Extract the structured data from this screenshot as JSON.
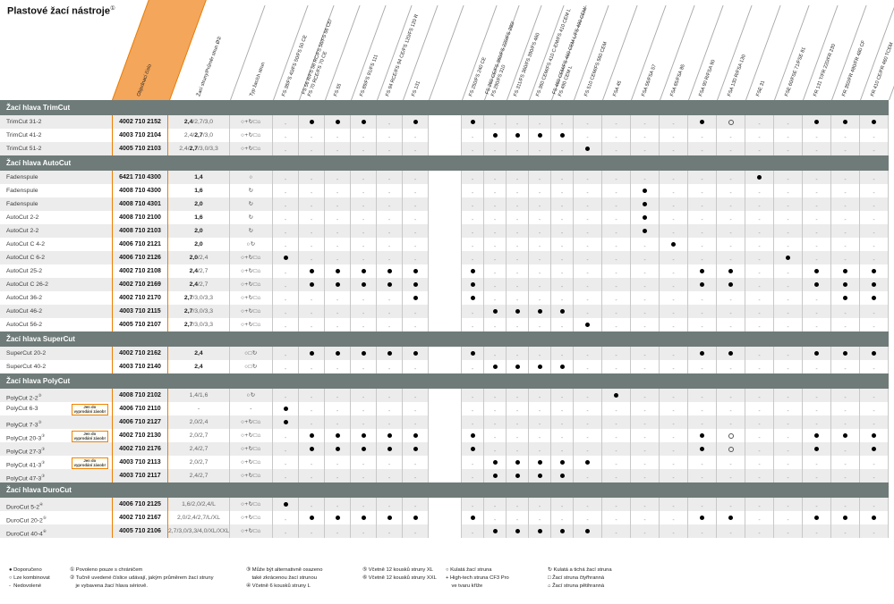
{
  "title": {
    "text": "Plastové žací nástroje",
    "sup": "①"
  },
  "columns": {
    "order": "Objednací číslo",
    "diameters": "Žací struny/Průměr strun Ø②",
    "line_type": "Typ žacích strun",
    "machines": [
      "FS 38/FS 40/FS 50/FS 50 CE",
      "FS 56 R/FS 56 RC/FS 56/FS 56 CE/\nFS 70 RCE/FS 70 CE",
      "FS 55",
      "FS 89/FS 91/FS 111",
      "FS 94 RCE/FS 94 CE/FS 120/FS 120 R",
      "FS 131",
      "FS 250/FS 240 CE",
      "FS 260 CE/FS 360/FS 220/FS 280/\nFS 290/FS 310",
      "FS 311/FS 360/FS 390/FS 460",
      "FS 360 CEM/FS 410 C-EM/FS 410 CEM L",
      "FS 460 CEM/FS 460 CEM L/FS 490 CEM/\nFS 490 CEM L",
      "FS 510 CEM/FS 560 CEM",
      "FSA 45",
      "FSA 56/FSA 57",
      "FSA 65/FSA 85",
      "FSA 90 R/FSA 90",
      "FSA 130 R/FSA 130",
      "FSE 31",
      "FSE 60/FSE 71/FSE 81",
      "FR 131 T/FR 220/FR 230",
      "FR 350/FR 480/FR 480 CF",
      "FR 410 CE/FR 460 TCEM"
    ]
  },
  "badge_text": "Jen do\nvyprodání zásob!",
  "sections": [
    {
      "title": "Žací hlava TrimCut",
      "rows": [
        {
          "name": "TrimCut 31-2",
          "order": "4002 710 2152",
          "d1": "",
          "d2": "2,4",
          "d3": "/2,7/3,0",
          "sym": "○+↻□⌂",
          "compat": "-BBB-BB--------BO--BBB"
        },
        {
          "name": "TrimCut 41-2",
          "order": "4003 710 2104",
          "d1": "2,4/",
          "d2": "2,7",
          "d3": "/3,0",
          "sym": "○+↻□⌂",
          "compat": "-------BBBB-----------"
        },
        {
          "name": "TrimCut 51-2",
          "order": "4005 710 2103",
          "d1": "2,4/",
          "d2": "2,7",
          "d3": "/3,0/3,3",
          "sym": "○+↻□⌂",
          "compat": "-----------B----------"
        }
      ]
    },
    {
      "title": "Žací hlava AutoCut",
      "rows": [
        {
          "name": "Fadenspule",
          "order": "6421 710 4300",
          "d1": "",
          "d2": "1,4",
          "d3": "",
          "sym": "○",
          "compat": "-----------------B----"
        },
        {
          "name": "Fadenspule",
          "order": "4008 710 4300",
          "d1": "",
          "d2": "1,6",
          "d3": "",
          "sym": "↻",
          "compat": "-------------B--------"
        },
        {
          "name": "Fadenspule",
          "order": "4008 710 4301",
          "d1": "",
          "d2": "2,0",
          "d3": "",
          "sym": "↻",
          "compat": "-------------B--------"
        },
        {
          "name": "AutoCut 2-2",
          "order": "4008 710 2100",
          "d1": "",
          "d2": "1,6",
          "d3": "",
          "sym": "↻",
          "compat": "-------------B--------"
        },
        {
          "name": "AutoCut 2-2",
          "order": "4008 710 2103",
          "d1": "",
          "d2": "2,0",
          "d3": "",
          "sym": "↻",
          "compat": "-------------B--------"
        },
        {
          "name": "AutoCut C 4-2",
          "order": "4006 710 2121",
          "d1": "",
          "d2": "2,0",
          "d3": "",
          "sym": "○↻",
          "compat": "--------------B-------"
        },
        {
          "name": "AutoCut C 6-2",
          "order": "4006 710 2126",
          "d1": "",
          "d2": "2,0",
          "d3": "/2,4",
          "sym": "○+↻□⌂",
          "compat": "B-----------------B---"
        },
        {
          "name": "AutoCut 25-2",
          "order": "4002 710 2108",
          "d1": "",
          "d2": "2,4",
          "d3": "/2,7",
          "sym": "○+↻□⌂",
          "compat": "-BBBBBB--------BB--BBB"
        },
        {
          "name": "AutoCut C 26-2",
          "order": "4002 710 2169",
          "d1": "",
          "d2": "2,4",
          "d3": "/2,7",
          "sym": "○+↻□⌂",
          "compat": "-BBBBBB--------BB--BBB"
        },
        {
          "name": "AutoCut 36-2",
          "order": "4002 710 2170",
          "d1": "",
          "d2": "2,7",
          "d3": "/3,0/3,3",
          "sym": "○+↻□⌂",
          "compat": "-----BB-------------BB"
        },
        {
          "name": "AutoCut 46-2",
          "order": "4003 710 2115",
          "d1": "",
          "d2": "2,7",
          "d3": "/3,0/3,3",
          "sym": "○+↻□⌂",
          "compat": "-------BBBB-----------"
        },
        {
          "name": "AutoCut 56-2",
          "order": "4005 710 2107",
          "d1": "",
          "d2": "2,7",
          "d3": "/3,0/3,3",
          "sym": "○+↻□⌂",
          "compat": "-----------B----------"
        }
      ]
    },
    {
      "title": "Žací hlava SuperCut",
      "rows": [
        {
          "name": "SuperCut 20-2",
          "order": "4002 710 2162",
          "d1": "",
          "d2": "2,4",
          "d3": "",
          "sym": "○□↻",
          "compat": "-BBBBBB--------BB--BBB"
        },
        {
          "name": "SuperCut 40-2",
          "order": "4003 710 2140",
          "d1": "",
          "d2": "2,4",
          "d3": "",
          "sym": "○□↻",
          "compat": "-------BBBB-----------"
        }
      ]
    },
    {
      "title": "Žací hlava PolyCut",
      "rows": [
        {
          "name": "PolyCut 2-2",
          "sup": "③",
          "order": "4008 710 2102",
          "d1": "1,4/1,6",
          "d2": "",
          "d3": "",
          "sym": "○↻",
          "compat": "------------B---------"
        },
        {
          "name": "PolyCut 6-3",
          "badge": true,
          "order": "4006 710 2110",
          "d1": "-",
          "d2": "",
          "d3": "",
          "sym": "-",
          "compat": "B---------------------"
        },
        {
          "name": "PolyCut 7-3",
          "sup": "③",
          "order": "4006 710 2127",
          "d1": "2,0/2,4",
          "d2": "",
          "d3": "",
          "sym": "○+↻□⌂",
          "compat": "B---------------------"
        },
        {
          "name": "PolyCut 20-3",
          "sup": "③",
          "badge": true,
          "order": "4002 710 2130",
          "d1": "2,0/2,7",
          "d2": "",
          "d3": "",
          "sym": "○+↻□⌂",
          "compat": "-BBBBBB--------BO--BBB"
        },
        {
          "name": "PolyCut 27-3",
          "sup": "③",
          "order": "4002 710 2176",
          "d1": "2,4/2,7",
          "d2": "",
          "d3": "",
          "sym": "○+↻□⌂",
          "compat": "-BBBBBB--------BO--B-B"
        },
        {
          "name": "PolyCut 41-3",
          "sup": "③",
          "badge": true,
          "order": "4003 710 2113",
          "d1": "2,0/2,7",
          "d2": "",
          "d3": "",
          "sym": "○+↻□⌂",
          "compat": "-------BBBBB----------"
        },
        {
          "name": "PolyCut 47-3",
          "sup": "③",
          "order": "4003 710 2117",
          "d1": "2,4/2,7",
          "d2": "",
          "d3": "",
          "sym": "○+↻□⌂",
          "compat": "-------BBBB-----------"
        }
      ]
    },
    {
      "title": "Žací hlava DuroCut",
      "rows": [
        {
          "name": "DuroCut 5-2",
          "sup": "④",
          "order": "4006 710 2125",
          "d1": "1,6/2,0/2,4/L",
          "d2": "",
          "d3": "",
          "sym": "○+↻□⌂",
          "compat": "B---------------------"
        },
        {
          "name": "DuroCut 20-2",
          "sup": "⑤",
          "order": "4002 710 2167",
          "d1": "2,0/2,4/2,7/L/XL",
          "d2": "",
          "d3": "",
          "sym": "○+↻□⌂",
          "compat": "-BBBBBB--------BB--BBB"
        },
        {
          "name": "DuroCut 40-4",
          "sup": "⑥",
          "order": "4005 710 2106",
          "d1": "2,7/3,0/3,3/4,0/XL/XXL",
          "d2": "",
          "d3": "",
          "sym": "○+↻□⌂",
          "compat": "-------BBBBB----------"
        }
      ]
    }
  ],
  "legend": {
    "blocks": [
      {
        "lines": [
          "● Doporučeno",
          "○ Lze kombinovat",
          "-  Nedovolené"
        ]
      },
      {
        "lines": [
          "① Povoleno pouze s chráničem",
          "② Tučně uvedené číslice udávají, jakým průměrem žací struny",
          "    je vybavena žací hlava sériově."
        ]
      },
      {
        "lines": [
          "③ Může být alternativně osazeno",
          "    také zkrácenou žací strunou",
          "④ Včetně 6 kousků struny L"
        ]
      },
      {
        "lines": [
          "⑤ Včetně 12 kousků struny XL",
          "⑥ Včetně 12 kousků struny XXL"
        ]
      },
      {
        "lines": [
          "○ Kulatá žací struna",
          "+ High-tech struna CF3 Pro",
          "    ve tvaru kříže"
        ]
      },
      {
        "lines": [
          "↻ Kulatá a tichá žací struna",
          "□ Žací struna čtyřhranná",
          "⌂ Žací struna pětihranná"
        ]
      }
    ]
  }
}
